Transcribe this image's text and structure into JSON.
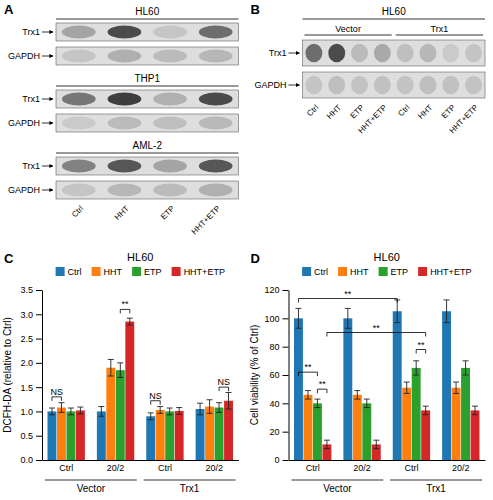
{
  "chart_data": [
    {
      "type": "blot",
      "title": "HL60",
      "annotations": [
        {
          "text": "A"
        }
      ],
      "series": [
        {
          "name": "Trx1",
          "values": [
            0.7,
            0.3,
            0.85,
            0.45
          ]
        },
        {
          "name": "GAPDH",
          "values": [
            0.85,
            0.75,
            0.8,
            0.78
          ]
        }
      ]
    },
    {
      "type": "blot",
      "title": "THP1",
      "series": [
        {
          "name": "Trx1",
          "values": [
            0.5,
            0.25,
            0.75,
            0.3
          ]
        },
        {
          "name": "GAPDH",
          "values": [
            0.88,
            0.8,
            0.82,
            0.79
          ]
        }
      ]
    },
    {
      "type": "blot",
      "title": "AML-2",
      "categories": [
        "Ctrl",
        "HHT",
        "ETP",
        "HHT+ETP"
      ],
      "series": [
        {
          "name": "Trx1",
          "values": [
            0.55,
            0.35,
            0.7,
            0.35
          ]
        },
        {
          "name": "GAPDH",
          "values": [
            0.85,
            0.78,
            0.8,
            0.75
          ]
        }
      ]
    },
    {
      "type": "blot",
      "title": "HL60",
      "annotations": [
        {
          "text": "B"
        }
      ],
      "groups": [
        {
          "name": "Vector",
          "count": 4
        },
        {
          "name": "Trx1",
          "count": 4
        }
      ],
      "categories": [
        "Ctrl",
        "HHT",
        "ETP",
        "HHT+ETP",
        "Ctrl",
        "HHT",
        "ETP",
        "HHT+ETP"
      ],
      "series": [
        {
          "name": "Trx1",
          "values": [
            0.45,
            0.3,
            0.8,
            0.72,
            0.82,
            0.78,
            0.88,
            0.85
          ]
        },
        {
          "name": "GAPDH",
          "values": [
            0.85,
            0.82,
            0.84,
            0.83,
            0.84,
            0.82,
            0.83,
            0.84
          ]
        }
      ]
    },
    {
      "type": "bar",
      "title": "HL60",
      "ylabel": "DCFH-DA (relative to Ctrl)",
      "categories": [
        "Ctrl",
        "20/2",
        "Ctrl",
        "20/2"
      ],
      "groups": [
        {
          "name": "Vector",
          "count": 2
        },
        {
          "name": "Trx1",
          "count": 2
        }
      ],
      "series": [
        {
          "name": "Ctrl",
          "values": [
            1.0,
            1.0,
            0.9,
            1.05
          ],
          "errors": [
            0.07,
            0.1,
            0.07,
            0.12
          ]
        },
        {
          "name": "HHT",
          "values": [
            1.08,
            1.9,
            1.03,
            1.1
          ],
          "errors": [
            0.1,
            0.17,
            0.07,
            0.14
          ]
        },
        {
          "name": "ETP",
          "values": [
            1.0,
            1.85,
            1.0,
            1.08
          ],
          "errors": [
            0.07,
            0.15,
            0.07,
            0.1
          ]
        },
        {
          "name": "HHT+ETP",
          "values": [
            1.02,
            2.85,
            1.01,
            1.22
          ],
          "errors": [
            0.07,
            0.07,
            0.07,
            0.17
          ]
        }
      ],
      "ylim": [
        0.0,
        3.5
      ],
      "yticks": [
        {
          "value": 0.0,
          "label": "0.0"
        },
        0.5,
        {
          "value": 1.0,
          "label": "1.0"
        },
        1.5,
        {
          "value": 2.0,
          "label": "2.0"
        },
        2.5,
        {
          "value": 3.0,
          "label": "3.0"
        },
        3.5
      ],
      "legend": "top",
      "annotations": [
        {
          "text": "C"
        },
        {
          "text": "NS",
          "y": 1.3,
          "from": {
            "category": 0,
            "series": 0
          },
          "to": {
            "category": 0,
            "series": 1
          }
        },
        {
          "text": "**",
          "y": 3.1,
          "from": {
            "category": 1,
            "series": 2
          },
          "to": {
            "category": 1,
            "series": 3
          }
        },
        {
          "text": "NS",
          "y": 1.22,
          "from": {
            "category": 2,
            "series": 0
          },
          "to": {
            "category": 2,
            "series": 1
          }
        },
        {
          "text": "NS",
          "y": 1.5,
          "from": {
            "category": 3,
            "series": 2
          },
          "to": {
            "category": 3,
            "series": 3
          }
        }
      ]
    },
    {
      "type": "bar",
      "title": "HL60",
      "ylabel": "Cell viability (% of Ctrl)",
      "categories": [
        "Ctrl",
        "20/2",
        "Ctrl",
        "20/2"
      ],
      "groups": [
        {
          "name": "Vector",
          "count": 2
        },
        {
          "name": "Trx1",
          "count": 2
        }
      ],
      "series": [
        {
          "name": "Ctrl",
          "values": [
            100,
            100,
            105,
            105
          ],
          "errors": [
            7,
            7,
            8,
            8
          ]
        },
        {
          "name": "HHT",
          "values": [
            46,
            46,
            51,
            51
          ],
          "errors": [
            3,
            3,
            4,
            4
          ]
        },
        {
          "name": "ETP",
          "values": [
            40,
            40,
            65,
            65
          ],
          "errors": [
            3,
            3,
            5,
            5
          ]
        },
        {
          "name": "HHT+ETP",
          "values": [
            11,
            11,
            35,
            35
          ],
          "errors": [
            3,
            3,
            3,
            3
          ]
        }
      ],
      "ylim": [
        0,
        120
      ],
      "yticks": [
        0,
        20,
        40,
        60,
        80,
        100,
        120
      ],
      "legend": "top",
      "annotations": [
        {
          "text": "D"
        },
        {
          "text": "**",
          "y": 114,
          "from": {
            "category": 0,
            "series": 0
          },
          "to": {
            "category": 2,
            "series": 0
          }
        },
        {
          "text": "**",
          "y": 62,
          "from": {
            "category": 0,
            "series": 0
          },
          "to": {
            "category": 0,
            "series": 2
          }
        },
        {
          "text": "**",
          "y": 50,
          "from": {
            "category": 0,
            "series": 2
          },
          "to": {
            "category": 0,
            "series": 3
          }
        },
        {
          "text": "**",
          "y": 90,
          "from": {
            "category": 0,
            "series": 3
          },
          "to": {
            "category": 2,
            "series": 3
          }
        },
        {
          "text": "**",
          "y": 78,
          "from": {
            "category": 2,
            "series": 2
          },
          "to": {
            "category": 2,
            "series": 3
          }
        }
      ]
    }
  ]
}
